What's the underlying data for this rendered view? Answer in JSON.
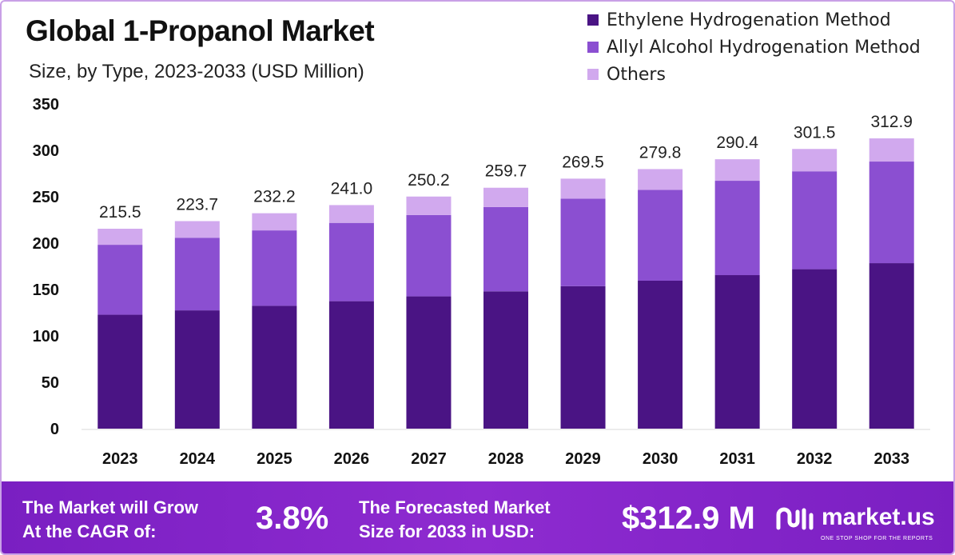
{
  "header": {
    "title": "Global 1-Propanol Market",
    "subtitle": "Size, by Type, 2023-2033 (USD Million)"
  },
  "legend": [
    {
      "label": "Ethylene Hydrogenation Method",
      "color": "#4a1484"
    },
    {
      "label": "Allyl Alcohol Hydrogenation Method",
      "color": "#8b4fd1"
    },
    {
      "label": "Others",
      "color": "#d1a9ee"
    }
  ],
  "chart_data": {
    "type": "bar",
    "stacked": true,
    "categories": [
      "2023",
      "2024",
      "2025",
      "2026",
      "2027",
      "2028",
      "2029",
      "2030",
      "2031",
      "2032",
      "2033"
    ],
    "series": [
      {
        "name": "Ethylene Hydrogenation Method",
        "color": "#4a1484",
        "values": [
          122.8,
          127.5,
          132.4,
          137.4,
          142.6,
          148.0,
          153.6,
          159.5,
          165.5,
          171.9,
          178.4
        ]
      },
      {
        "name": "Allyl Alcohol Hydrogenation Method",
        "color": "#8b4fd1",
        "values": [
          75.4,
          78.3,
          81.3,
          84.4,
          87.6,
          90.9,
          94.3,
          97.9,
          101.7,
          105.5,
          109.5
        ]
      },
      {
        "name": "Others",
        "color": "#d1a9ee",
        "values": [
          17.3,
          17.9,
          18.5,
          19.2,
          20.0,
          20.8,
          21.6,
          22.4,
          23.2,
          24.1,
          25.0
        ]
      }
    ],
    "totals": [
      "215.5",
      "223.7",
      "232.2",
      "241.0",
      "250.2",
      "259.7",
      "269.5",
      "279.8",
      "290.4",
      "301.5",
      "312.9"
    ],
    "ylim": [
      0,
      350
    ],
    "yticks": [
      "0",
      "50",
      "100",
      "150",
      "200",
      "250",
      "300",
      "350"
    ],
    "grid": false,
    "legend_position": "top-right"
  },
  "footer": {
    "cagr_label_line1": "The Market will Grow",
    "cagr_label_line2": "At the CAGR of:",
    "cagr_value": "3.8%",
    "forecast_label_line1": "The Forecasted Market",
    "forecast_label_line2": "Size for 2033 in USD:",
    "forecast_value": "$312.9 M",
    "brand_name": "market.us",
    "brand_tagline": "ONE STOP SHOP FOR THE REPORTS"
  }
}
